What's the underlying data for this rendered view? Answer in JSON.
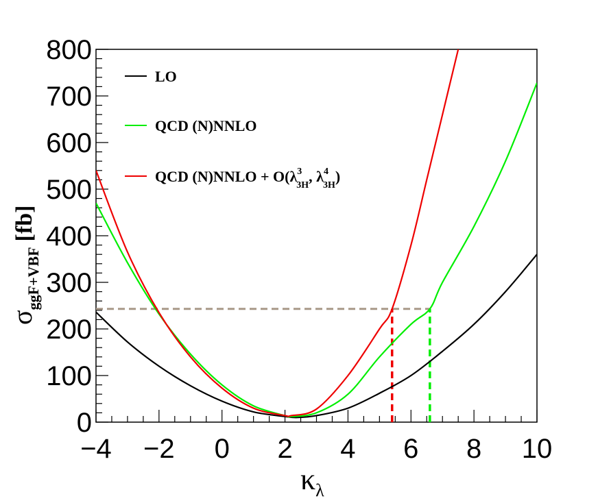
{
  "chart_data": {
    "type": "line",
    "title": "",
    "xlabel": "κ",
    "xlabel_sub": "λ",
    "ylabel": {
      "symbol": "σ",
      "subscript": "ggF+VBF",
      "unit": "[fb]"
    },
    "xlim": [
      -4,
      10
    ],
    "ylim": [
      0,
      800
    ],
    "x_ticks": [
      -4,
      -2,
      0,
      2,
      4,
      6,
      8,
      10
    ],
    "x_tick_labels": [
      "−4",
      "−2",
      "0",
      "2",
      "4",
      "6",
      "8",
      "10"
    ],
    "y_ticks": [
      0,
      100,
      200,
      300,
      400,
      500,
      600,
      700,
      800
    ],
    "y_tick_labels": [
      "0",
      "100",
      "200",
      "300",
      "400",
      "500",
      "600",
      "700",
      "800"
    ],
    "grid": false,
    "legend_position": "top-left",
    "series": [
      {
        "name": "LO",
        "color": "#000000",
        "x": [
          -4,
          -3,
          -2,
          -1,
          0,
          1,
          2,
          2.4,
          3,
          4,
          5,
          6,
          7,
          8,
          9,
          10
        ],
        "y": [
          236,
          172,
          120,
          78,
          45,
          22,
          12,
          10,
          14,
          30,
          62,
          100,
          152,
          210,
          280,
          360
        ]
      },
      {
        "name": "QCD (N)NNLO",
        "color": "#00ee00",
        "x": [
          -4,
          -3,
          -2,
          -1,
          0,
          1,
          2,
          2.2,
          3,
          4,
          5,
          6,
          6.6,
          7,
          8,
          9,
          10
        ],
        "y": [
          470,
          342,
          232,
          146,
          80,
          35,
          14,
          12,
          20,
          60,
          140,
          210,
          243,
          300,
          420,
          560,
          728
        ]
      },
      {
        "name": "QCD (N)NNLO + O(λ",
        "legend_parts": {
          "main": "QCD (N)NNLO + O(λ",
          "sup1": "3",
          "sub1": "3H",
          "sep": ",  λ",
          "sup2": "4",
          "sub2": "3H",
          "close": ")"
        },
        "color": "#ee0000",
        "x": [
          -4,
          -3,
          -2,
          -1,
          0,
          1,
          2,
          2.2,
          3,
          4,
          5,
          5.4,
          6,
          6.5,
          7,
          7.5
        ],
        "y": [
          540,
          365,
          235,
          140,
          73,
          30,
          14,
          14,
          28,
          100,
          200,
          243,
          380,
          520,
          660,
          800
        ]
      }
    ],
    "annotations": [
      {
        "type": "hline",
        "y": 243,
        "x_from": -4,
        "x_to": 6.6,
        "color": "#a89888",
        "style": "dashed"
      },
      {
        "type": "vline",
        "x": 5.4,
        "y_from": 0,
        "y_to": 243,
        "color": "#ee0000",
        "style": "dashed"
      },
      {
        "type": "vline",
        "x": 6.6,
        "y_from": 0,
        "y_to": 243,
        "color": "#00ee00",
        "style": "dashed"
      }
    ]
  }
}
